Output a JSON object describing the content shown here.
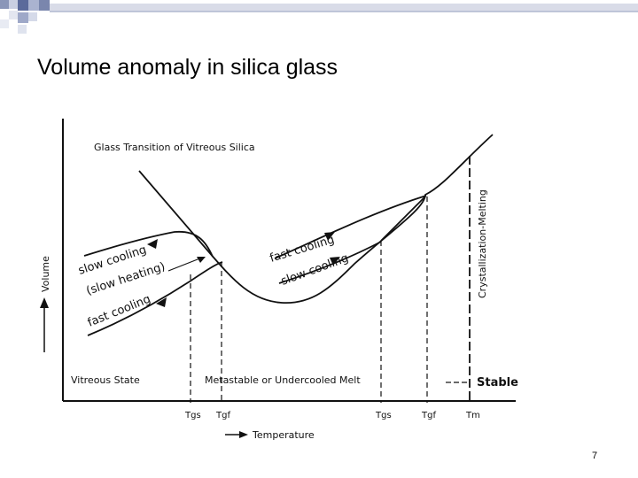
{
  "slide": {
    "title": "Volume anomaly in silica glass",
    "page_number": "7"
  },
  "figure": {
    "heading": "Glass Transition of Vitreous Silica",
    "y_axis_label": "Volume",
    "x_axis_label": "Temperature",
    "curve_labels": {
      "slow_cooling_left": "slow cooling",
      "slow_heating": "(slow heating)",
      "fast_cooling_left": "fast cooling",
      "fast_cooling_right": "fast cooling",
      "slow_cooling_right": "slow cooling",
      "crystallization": "Crystallization-Melting"
    },
    "region_labels": {
      "vitreous": "Vitreous State",
      "metastable": "Metastable or Undercooled Melt",
      "stable": "Stable"
    },
    "tick_labels": {
      "t1": "Tgs",
      "t2": "Tgf",
      "t3": "Tgs",
      "t4": "Tgf",
      "t5": "Tm"
    }
  }
}
